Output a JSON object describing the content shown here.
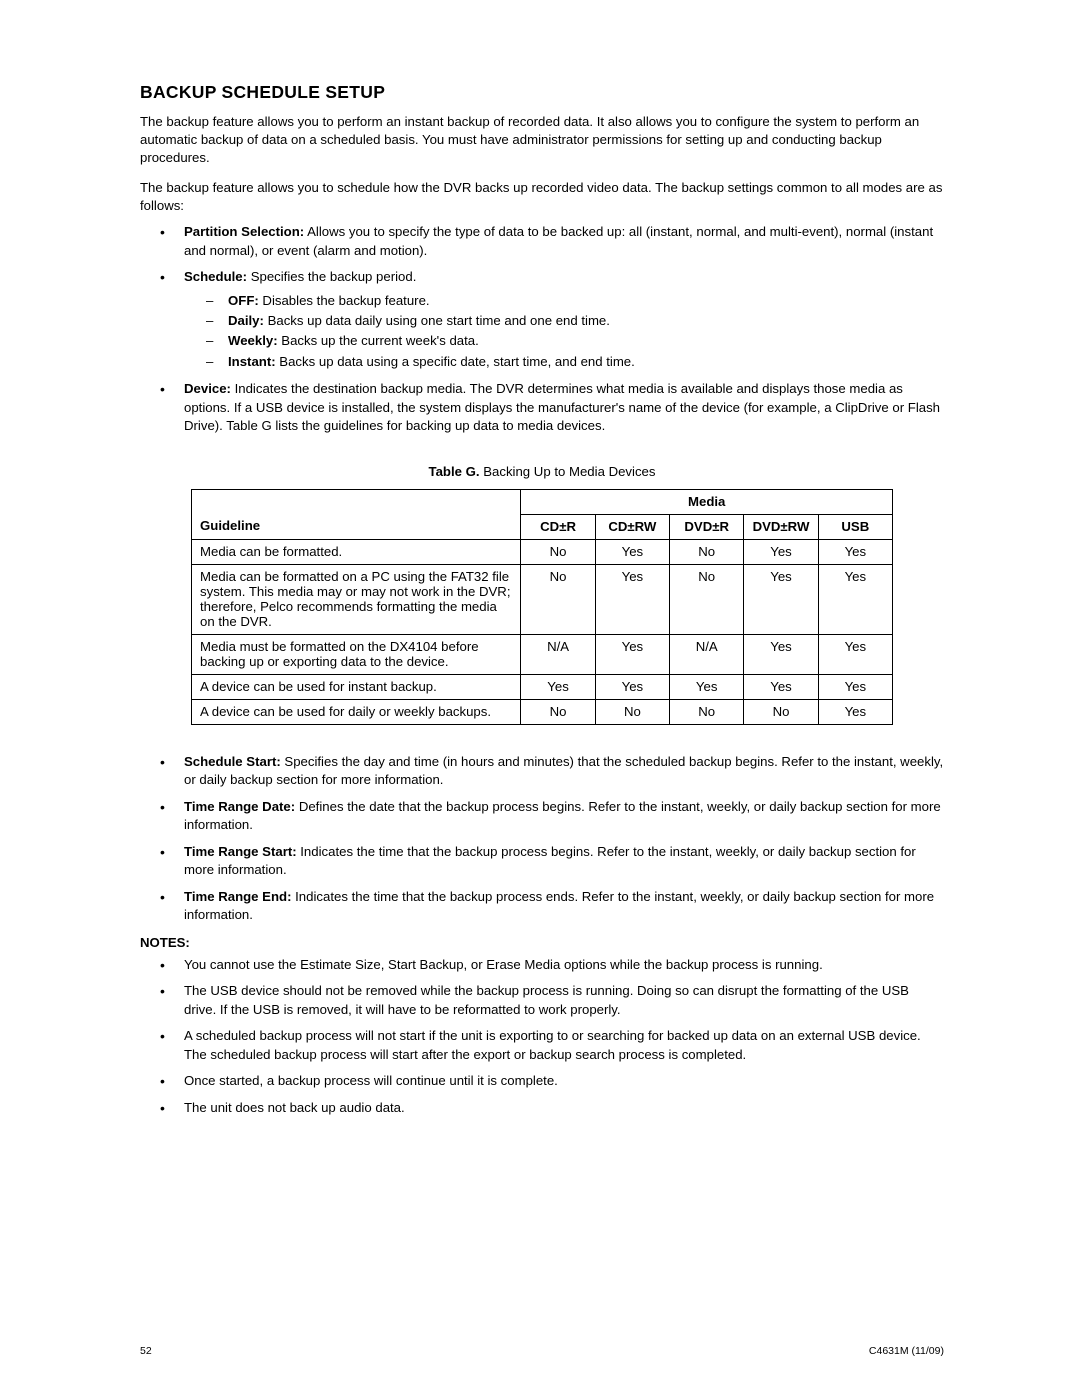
{
  "title": "BACKUP SCHEDULE SETUP",
  "intro": "The backup feature allows you to perform an instant backup of recorded data. It also allows you to configure the system to perform an automatic backup of data on a scheduled basis. You must have administrator permissions for setting up and conducting backup procedures.",
  "intro2": "The backup feature allows you to schedule how the DVR backs up recorded video data. The backup settings common to all modes are as follows:",
  "bullets_top": {
    "partition_label": "Partition Selection:",
    "partition_text": "  Allows you to specify the type of data to be backed up: all (instant, normal, and multi-event), normal (instant and normal), or event (alarm and motion).",
    "schedule_label": "Schedule:",
    "schedule_text": "  Specifies the backup period.",
    "schedule_items": {
      "off_label": "OFF:",
      "off_text": "  Disables the backup feature.",
      "daily_label": "Daily:",
      "daily_text": "  Backs up data daily using one start time and one end time.",
      "weekly_label": "Weekly:",
      "weekly_text": "  Backs up the current week's data.",
      "instant_label": "Instant:",
      "instant_text": "  Backs up data using a specific date, start time, and end time."
    },
    "device_label": "Device:",
    "device_text": "  Indicates the destination backup media. The DVR determines what media is available and displays those media as options. If a USB device is installed, the system displays the manufacturer's name of the device (for example, a ClipDrive or Flash Drive). Table G lists the guidelines for backing up data to media devices."
  },
  "table": {
    "caption_lead": "Table G.",
    "caption_rest": "  Backing Up to Media Devices",
    "guideline_header": "Guideline",
    "media_header": "Media",
    "cols": {
      "c1": "CD±R",
      "c2": "CD±RW",
      "c3": "DVD±R",
      "c4": "DVD±RW",
      "c5": "USB"
    },
    "rows": {
      "r0": {
        "g": "Media can be formatted.",
        "c1": "No",
        "c2": "Yes",
        "c3": "No",
        "c4": "Yes",
        "c5": "Yes"
      },
      "r1": {
        "g": "Media can be formatted on a PC using the FAT32 file system. This media may or may not work in the DVR; therefore, Pelco recommends formatting the media on the DVR.",
        "c1": "No",
        "c2": "Yes",
        "c3": "No",
        "c4": "Yes",
        "c5": "Yes"
      },
      "r2": {
        "g": "Media must be formatted on the DX4104 before backing up or exporting data to the device.",
        "c1": "N/A",
        "c2": "Yes",
        "c3": "N/A",
        "c4": "Yes",
        "c5": "Yes"
      },
      "r3": {
        "g": "A device can be used for instant backup.",
        "c1": "Yes",
        "c2": "Yes",
        "c3": "Yes",
        "c4": "Yes",
        "c5": "Yes"
      },
      "r4": {
        "g": "A device can be used for daily or weekly backups.",
        "c1": "No",
        "c2": "No",
        "c3": "No",
        "c4": "No",
        "c5": "Yes"
      }
    }
  },
  "bullets_mid": {
    "ss_label": "Schedule Start:",
    "ss_text": "  Specifies the day and time (in hours and minutes) that the scheduled backup begins. Refer to the instant, weekly, or daily backup section for more information.",
    "trd_label": "Time Range Date:",
    "trd_text": "  Defines the date that the backup process begins. Refer to the instant, weekly, or daily backup section for more information.",
    "trs_label": "Time Range Start:",
    "trs_text": "  Indicates the time that the backup process begins. Refer to the instant, weekly, or daily backup section for more information.",
    "tre_label": "Time Range End:",
    "tre_text": "  Indicates the time that the backup process ends. Refer to the instant, weekly, or daily backup section for more information."
  },
  "notes_header": "NOTES:",
  "notes": {
    "n0": "You cannot use the Estimate Size, Start Backup, or Erase Media options while the backup process is running.",
    "n1": "The USB device should not be removed while the backup process is running. Doing so can disrupt the formatting of the USB drive. If the USB is removed, it will have to be reformatted to work properly.",
    "n2a": "A scheduled backup process will not start if the unit is exporting to or searching for backed up data on an external USB device.",
    "n2b": "The scheduled backup process will start after the export or backup search process is completed.",
    "n3": "Once started, a backup process will continue until it is complete.",
    "n4": "The unit does not back up audio data."
  },
  "footer": {
    "page": "52",
    "doc": "C4631M (11/09)"
  }
}
